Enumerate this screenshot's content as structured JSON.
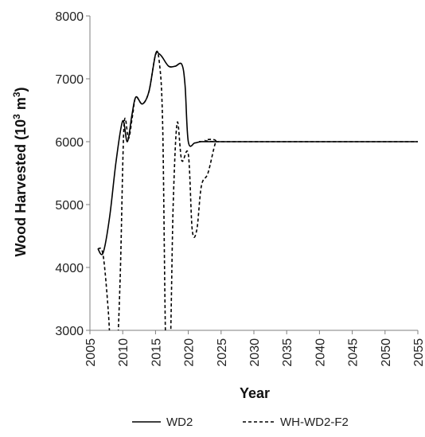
{
  "chart_data": {
    "type": "line",
    "title": "",
    "xlabel": "Year",
    "ylabel_main": "Wood Harvested (10",
    "ylabel_sup": "3",
    "ylabel_unit": " m",
    "ylabel_sup2": "3",
    "ylabel_end": ")",
    "xlim": [
      2005,
      2055
    ],
    "ylim": [
      3000,
      8000
    ],
    "x_ticks": [
      "2005",
      "2010",
      "2015",
      "2020",
      "2025",
      "2030",
      "2035",
      "2040",
      "2045",
      "2050",
      "2055"
    ],
    "y_ticks": [
      "3000",
      "4000",
      "5000",
      "6000",
      "7000",
      "8000"
    ],
    "grid": false,
    "legend_position": "bottom",
    "series": [
      {
        "name": "WD2",
        "style": "solid",
        "color": "#000000",
        "x": [
          2006.2,
          2007.0,
          2008.0,
          2009.0,
          2010.0,
          2010.7,
          2011.4,
          2012.0,
          2013.0,
          2014.0,
          2015.0,
          2015.5,
          2016.0,
          2017.0,
          2018.0,
          2019.0,
          2019.5,
          2020.0,
          2021.0,
          2022.0,
          2025.0,
          2055.0
        ],
        "y": [
          4300,
          4230,
          4800,
          5700,
          6330,
          6000,
          6420,
          6710,
          6600,
          6800,
          7390,
          7400,
          7350,
          7200,
          7200,
          7230,
          6900,
          6000,
          5980,
          6000,
          6000,
          6000
        ]
      },
      {
        "name": "WH-WD2-F2",
        "style": "dashed",
        "color": "#000000",
        "x": [
          2006.2,
          2007.0,
          2007.8,
          2008.3,
          2009.0,
          2009.6,
          2010.2,
          2010.9,
          2011.5,
          2012.0,
          2013.0,
          2014.0,
          2015.0,
          2015.6,
          2016.1,
          2016.6,
          2017.2,
          2017.7,
          2018.3,
          2019.0,
          2020.0,
          2020.6,
          2021.3,
          2022.0,
          2023.0,
          2024.2,
          2025.0,
          2055.0
        ],
        "y": [
          4300,
          4200,
          3300,
          2400,
          2400,
          3800,
          6250,
          6050,
          6420,
          6710,
          6600,
          6800,
          7380,
          7250,
          6200,
          2500,
          2500,
          5000,
          6300,
          5700,
          5800,
          4600,
          4600,
          5300,
          5500,
          6000,
          6000,
          6000
        ]
      }
    ]
  }
}
